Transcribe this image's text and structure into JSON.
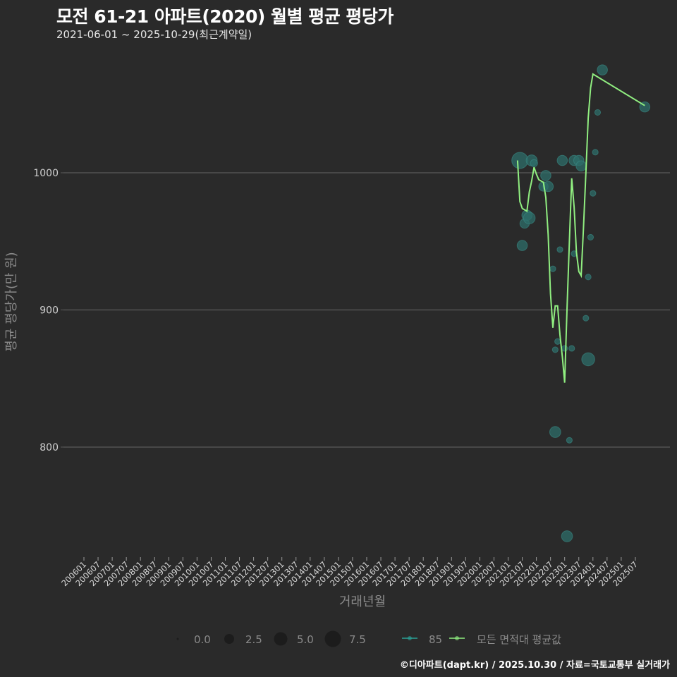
{
  "header": {
    "title": "모전 61-21 아파트(2020) 월별 평균 평당가",
    "subtitle": "2021-06-01 ~ 2025-10-29(최근계약일)"
  },
  "footer": {
    "credit": "©디아파트(dapt.kr) / 2025.10.30 / 자료=국토교통부 실거래가"
  },
  "colors": {
    "background": "#2a2a2a",
    "gridline": "#5a5a5a",
    "avg_line": "#90ee80",
    "point_fill": "#2e6e6a",
    "point_stroke": "#3a8a85",
    "series85": "#2aa198"
  },
  "chart_data": {
    "type": "scatter+line",
    "title": "모전 61-21 아파트(2020) 월별 평균 평당가",
    "subtitle": "2021-06-01 ~ 2025-10-29(최근계약일)",
    "xlabel": "거래년월",
    "ylabel": "평균 평당가(만 원)",
    "x_ticks": [
      "200601",
      "200607",
      "200701",
      "200707",
      "200801",
      "200807",
      "200901",
      "200907",
      "201001",
      "201007",
      "201101",
      "201107",
      "201201",
      "201207",
      "201301",
      "201307",
      "201401",
      "201407",
      "201501",
      "201507",
      "201601",
      "201607",
      "201701",
      "201707",
      "201801",
      "201807",
      "201901",
      "201907",
      "202001",
      "202007",
      "202101",
      "202107",
      "202201",
      "202207",
      "202301",
      "202307",
      "202401",
      "202407",
      "202501",
      "202507"
    ],
    "y_ticks": [
      800,
      900,
      1000
    ],
    "ylim": [
      720,
      1085
    ],
    "grid": {
      "horizontal": true,
      "vertical": false
    },
    "legend": {
      "position": "bottom",
      "size_title": "",
      "size_entries": [
        {
          "label": "0.0",
          "r": 1.5
        },
        {
          "label": "2.5",
          "r": 7
        },
        {
          "label": "5.0",
          "r": 9.5
        },
        {
          "label": "7.5",
          "r": 11.5
        }
      ],
      "series_entries": [
        {
          "label": "85",
          "color": "#2aa198"
        },
        {
          "label": "모든 면적대 평균값",
          "color": "#90ee80"
        }
      ]
    },
    "series": [
      {
        "name": "85",
        "type": "scatter",
        "points": [
          {
            "x": "202106",
            "y": 1009,
            "size": 7.5
          },
          {
            "x": "202107",
            "y": 947,
            "size": 2.5
          },
          {
            "x": "202108",
            "y": 963,
            "size": 2.0
          },
          {
            "x": "202109",
            "y": 969,
            "size": 2.5
          },
          {
            "x": "202110",
            "y": 967,
            "size": 3.5
          },
          {
            "x": "202111",
            "y": 1009,
            "size": 3.0
          },
          {
            "x": "202112",
            "y": 1007,
            "size": 1.0
          },
          {
            "x": "202204",
            "y": 990,
            "size": 2.0
          },
          {
            "x": "202205",
            "y": 998,
            "size": 2.5
          },
          {
            "x": "202206",
            "y": 990,
            "size": 2.5
          },
          {
            "x": "202208",
            "y": 930,
            "size": 0.5
          },
          {
            "x": "202209",
            "y": 871,
            "size": 0.5
          },
          {
            "x": "202209",
            "y": 811,
            "size": 3.0
          },
          {
            "x": "202210",
            "y": 877,
            "size": 0.5
          },
          {
            "x": "202211",
            "y": 944,
            "size": 0.5
          },
          {
            "x": "202212",
            "y": 1009,
            "size": 2.5
          },
          {
            "x": "202301",
            "y": 872,
            "size": 0.5
          },
          {
            "x": "202302",
            "y": 735,
            "size": 3.0
          },
          {
            "x": "202303",
            "y": 805,
            "size": 0.5
          },
          {
            "x": "202304",
            "y": 872,
            "size": 0.5
          },
          {
            "x": "202305",
            "y": 941,
            "size": 0.5
          },
          {
            "x": "202305",
            "y": 1009,
            "size": 2.5
          },
          {
            "x": "202307",
            "y": 1009,
            "size": 2.5
          },
          {
            "x": "202308",
            "y": 1005,
            "size": 2.5
          },
          {
            "x": "202310",
            "y": 894,
            "size": 0.5
          },
          {
            "x": "202311",
            "y": 924,
            "size": 0.5
          },
          {
            "x": "202311",
            "y": 864,
            "size": 4.5
          },
          {
            "x": "202312",
            "y": 953,
            "size": 0.5
          },
          {
            "x": "202401",
            "y": 985,
            "size": 0.5
          },
          {
            "x": "202402",
            "y": 1015,
            "size": 0.5
          },
          {
            "x": "202403",
            "y": 1044,
            "size": 0.5
          },
          {
            "x": "202405",
            "y": 1075,
            "size": 2.5
          },
          {
            "x": "202511",
            "y": 1048,
            "size": 2.5
          }
        ]
      },
      {
        "name": "모든 면적대 평균값",
        "type": "line",
        "points": [
          {
            "x": "202105",
            "y": 1009
          },
          {
            "x": "202106",
            "y": 979
          },
          {
            "x": "202107",
            "y": 974
          },
          {
            "x": "202108",
            "y": 973
          },
          {
            "x": "202109",
            "y": 972
          },
          {
            "x": "202110",
            "y": 986
          },
          {
            "x": "202111",
            "y": 994
          },
          {
            "x": "202112",
            "y": 1004
          },
          {
            "x": "202201",
            "y": 999
          },
          {
            "x": "202202",
            "y": 995
          },
          {
            "x": "202203",
            "y": 994
          },
          {
            "x": "202204",
            "y": 993
          },
          {
            "x": "202205",
            "y": 982
          },
          {
            "x": "202206",
            "y": 955
          },
          {
            "x": "202207",
            "y": 912
          },
          {
            "x": "202208",
            "y": 887
          },
          {
            "x": "202209",
            "y": 903
          },
          {
            "x": "202210",
            "y": 903
          },
          {
            "x": "202211",
            "y": 882
          },
          {
            "x": "202212",
            "y": 866
          },
          {
            "x": "202301",
            "y": 847
          },
          {
            "x": "202302",
            "y": 900
          },
          {
            "x": "202303",
            "y": 950
          },
          {
            "x": "202304",
            "y": 996
          },
          {
            "x": "202305",
            "y": 975
          },
          {
            "x": "202306",
            "y": 942
          },
          {
            "x": "202307",
            "y": 928
          },
          {
            "x": "202308",
            "y": 925
          },
          {
            "x": "202309",
            "y": 960
          },
          {
            "x": "202310",
            "y": 1000
          },
          {
            "x": "202311",
            "y": 1040
          },
          {
            "x": "202312",
            "y": 1062
          },
          {
            "x": "202401",
            "y": 1072
          },
          {
            "x": "202511",
            "y": 1049
          }
        ]
      }
    ]
  }
}
